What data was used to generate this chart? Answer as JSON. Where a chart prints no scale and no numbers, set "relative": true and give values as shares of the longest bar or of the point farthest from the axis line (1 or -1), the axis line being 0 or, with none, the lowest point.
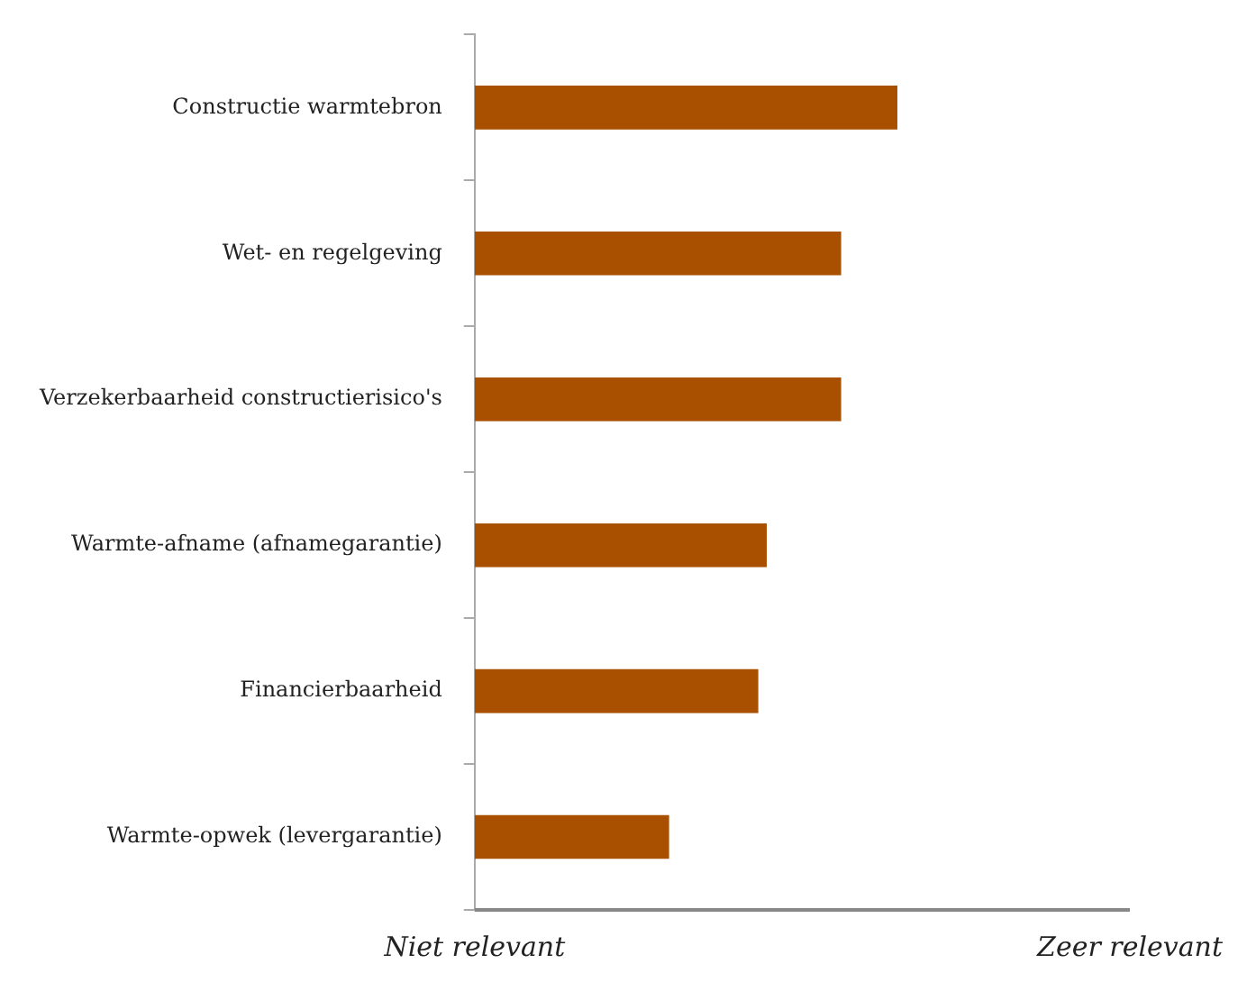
{
  "chart_data": {
    "type": "bar",
    "orientation": "horizontal",
    "relative": true,
    "categories": [
      "Constructie warmtebron",
      "Wet- en regelgeving",
      "Verzekerbaarheid constructierisico's",
      "Warmte-afname (afnamegarantie)",
      "Financierbaarheid",
      "Warmte-opwek (levergarantie)"
    ],
    "values": [
      1,
      0.867,
      0.867,
      0.691,
      0.671,
      0.46
    ],
    "color": "#a84f00",
    "annotations": [
      "Niet relevant",
      "Zeer relevant"
    ],
    "legend": false
  }
}
